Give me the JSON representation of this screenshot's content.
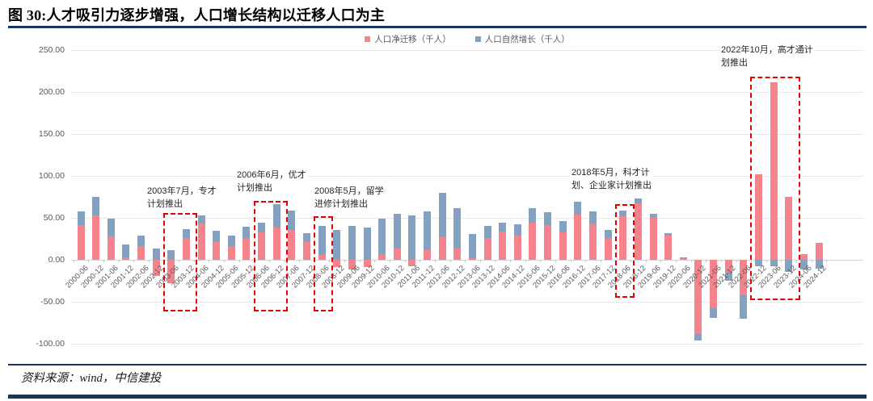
{
  "header": {
    "title": "图 30:人才吸引力逐步增强，人口增长结构以迁移人口为主"
  },
  "footer": {
    "source": "资料来源：wind，中信建投"
  },
  "colors": {
    "migration_red": "#f4838b",
    "natural_blue": "#84a1c1",
    "highlight_red": "#e60000",
    "navy_rule": "#17365d",
    "grid": "#e9e9e9",
    "axis_text": "#595959"
  },
  "chart_data": {
    "type": "bar",
    "stacked": true,
    "grid": true,
    "legend_position": "top-center",
    "title": "图 30:人才吸引力逐步增强，人口增长结构以迁移人口为主",
    "xlabel": "",
    "ylabel": "",
    "ylim": [
      -100,
      250
    ],
    "y_ticks": [
      "250.00",
      "200.00",
      "150.00",
      "100.00",
      "50.00",
      "0.00",
      "-50.00",
      "-100.00"
    ],
    "categories": [
      "2000-06",
      "2000-12",
      "2001-06",
      "2001-12",
      "2002-06",
      "2002-12",
      "2003-06",
      "2003-12",
      "2004-06",
      "2004-12",
      "2005-06",
      "2005-12",
      "2006-06",
      "2006-12",
      "2007-06",
      "2007-12",
      "2008-06",
      "2008-12",
      "2009-06",
      "2009-12",
      "2010-06",
      "2010-12",
      "2011-06",
      "2011-12",
      "2012-06",
      "2012-12",
      "2013-06",
      "2013-12",
      "2014-06",
      "2014-12",
      "2015-06",
      "2015-12",
      "2016-06",
      "2016-12",
      "2017-06",
      "2017-12",
      "2018-06",
      "2018-12",
      "2019-06",
      "2019-12",
      "2020-06",
      "2020-12",
      "2021-06",
      "2021-12",
      "2022-06",
      "2022-12",
      "2023-06",
      "2023-12",
      "2024-06",
      "2024-12"
    ],
    "series": [
      {
        "name": "人口净迁移（千人）",
        "color": "#f4838b",
        "values": [
          41,
          53,
          28,
          3,
          16,
          -19,
          -28,
          26,
          43,
          21,
          16,
          26,
          33,
          38,
          36,
          21,
          6,
          -9,
          -12,
          -9,
          7,
          13,
          -8,
          12,
          28,
          13,
          2,
          26,
          34,
          29,
          44,
          41,
          33,
          54,
          42,
          26,
          52,
          67,
          50,
          29,
          2,
          -88,
          -58,
          -14,
          -42,
          102,
          212,
          75,
          7,
          20
        ]
      },
      {
        "name": "人口自然增长（千人）",
        "color": "#84a1c1",
        "values": [
          17,
          22,
          21,
          15,
          13,
          13,
          12,
          11,
          10,
          14,
          13,
          13,
          11,
          28,
          23,
          11,
          34,
          36,
          40,
          38,
          42,
          42,
          53,
          46,
          52,
          49,
          29,
          14,
          10,
          13,
          18,
          16,
          13,
          15,
          16,
          10,
          7,
          6,
          5,
          3,
          1,
          -8,
          -11,
          -11,
          -28,
          -8,
          -8,
          -14,
          -12,
          -11
        ]
      }
    ],
    "annotations": [
      {
        "lines": [
          "2003年7月，专才",
          "计划推出"
        ],
        "x": 180,
        "y": 228
      },
      {
        "lines": [
          "2006年6月，优才",
          "计划推出"
        ],
        "x": 291,
        "y": 208
      },
      {
        "lines": [
          "2008年5月，留学",
          "进修计划推出"
        ],
        "x": 387,
        "y": 228
      },
      {
        "lines": [
          "2018年5月，科才计",
          "划、企业家计划推出"
        ],
        "x": 705,
        "y": 205
      },
      {
        "lines": [
          "2022年10月，高才通计",
          "划推出"
        ],
        "x": 890,
        "y": 53
      }
    ],
    "highlight_boxes": [
      {
        "from": "2003-06",
        "to": "2003-12",
        "y_top": 56,
        "y_bottom": -58
      },
      {
        "from": "2006-06",
        "to": "2006-12",
        "y_top": 70,
        "y_bottom": -58
      },
      {
        "from": "2008-06",
        "to": "2008-06",
        "y_top": 52,
        "y_bottom": -58
      },
      {
        "from": "2018-06",
        "to": "2018-06",
        "y_top": 66,
        "y_bottom": -41
      },
      {
        "from": "2022-12",
        "to": "2023-12",
        "y_top": 218,
        "y_bottom": -44
      }
    ]
  }
}
